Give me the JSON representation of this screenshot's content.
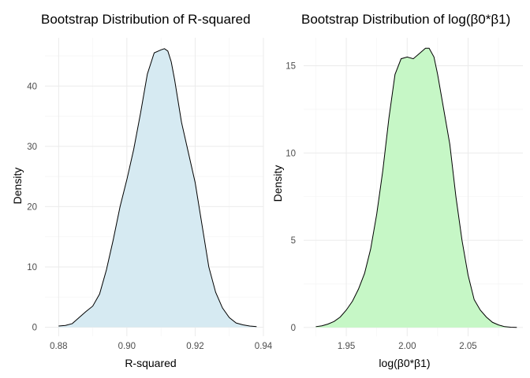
{
  "chart_data": [
    {
      "type": "area",
      "title": "Bootstrap Distribution of R-squared",
      "xlabel": "R-squared",
      "ylabel": "Density",
      "xlim": [
        0.876,
        0.94
      ],
      "ylim": [
        -1.5,
        48
      ],
      "x_ticks": [
        0.88,
        0.9,
        0.92,
        0.94
      ],
      "x_tick_labels": [
        "0.88",
        "0.90",
        "0.92",
        "0.94"
      ],
      "y_ticks": [
        0,
        10,
        20,
        30,
        40
      ],
      "y_tick_labels": [
        "0",
        "10",
        "20",
        "30",
        "40"
      ],
      "grid": true,
      "fill_color": "#d6eaf2",
      "line_color": "#000000",
      "series": [
        {
          "x": [
            0.88,
            0.882,
            0.884,
            0.886,
            0.888,
            0.89,
            0.892,
            0.894,
            0.896,
            0.898,
            0.9,
            0.902,
            0.904,
            0.906,
            0.908,
            0.91,
            0.911,
            0.912,
            0.913,
            0.914,
            0.916,
            0.918,
            0.92,
            0.922,
            0.924,
            0.926,
            0.928,
            0.93,
            0.932,
            0.934,
            0.936,
            0.938
          ],
          "y": [
            0.2,
            0.3,
            0.6,
            1.6,
            2.6,
            3.5,
            5.5,
            9.5,
            14.5,
            20,
            24.5,
            29.5,
            35.5,
            42,
            45.5,
            46,
            46.2,
            45.8,
            44,
            41,
            34,
            29,
            24,
            17,
            10,
            5.8,
            3.2,
            1.6,
            0.7,
            0.4,
            0.2,
            0.1
          ]
        }
      ]
    },
    {
      "type": "area",
      "title": "Bootstrap Distribution of log(β0*β1)",
      "xlabel": "log(β0*β1)",
      "ylabel": "Density",
      "xlim": [
        1.915,
        2.095
      ],
      "ylim": [
        -0.5,
        16.6
      ],
      "x_ticks": [
        1.95,
        2.0,
        2.05
      ],
      "x_tick_labels": [
        "1.95",
        "2.00",
        "2.05"
      ],
      "y_ticks": [
        0,
        5,
        10,
        15
      ],
      "y_tick_labels": [
        "0",
        "5",
        "10",
        "15"
      ],
      "grid": true,
      "fill_color": "#c6f7c6",
      "line_color": "#000000",
      "series": [
        {
          "x": [
            1.925,
            1.93,
            1.935,
            1.94,
            1.945,
            1.95,
            1.955,
            1.96,
            1.965,
            1.97,
            1.975,
            1.98,
            1.985,
            1.99,
            1.995,
            2.0,
            2.005,
            2.01,
            2.015,
            2.018,
            2.022,
            2.025,
            2.03,
            2.035,
            2.04,
            2.045,
            2.05,
            2.055,
            2.06,
            2.065,
            2.07,
            2.075,
            2.08,
            2.085,
            2.09
          ],
          "y": [
            0.05,
            0.1,
            0.2,
            0.35,
            0.6,
            1.0,
            1.5,
            2.2,
            3.1,
            4.5,
            6.5,
            9.0,
            12.0,
            14.5,
            15.4,
            15.5,
            15.4,
            15.7,
            16.0,
            16.0,
            15.5,
            14.5,
            12.5,
            10.5,
            7.5,
            5.0,
            3.0,
            1.6,
            1.0,
            0.6,
            0.3,
            0.15,
            0.05,
            0.02,
            0.01
          ]
        }
      ]
    }
  ]
}
